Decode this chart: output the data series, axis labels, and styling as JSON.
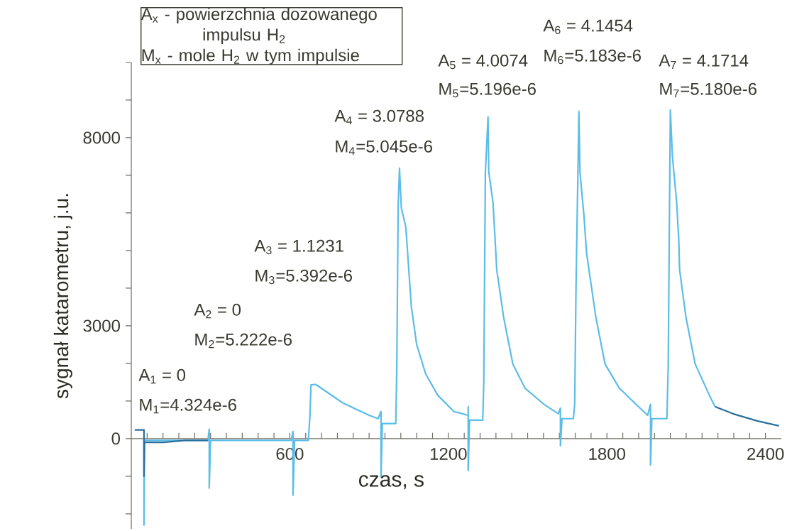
{
  "chart_data": {
    "type": "line",
    "xlabel": "czas, s",
    "ylabel": "sygnał katarometru, j.u.",
    "xlim": [
      0,
      2460
    ],
    "ylim": [
      -2400,
      10000
    ],
    "xticks": [
      {
        "value": 60,
        "label": null
      },
      {
        "value": 120,
        "label": null
      },
      {
        "value": 180,
        "label": null
      },
      {
        "value": 240,
        "label": null
      },
      {
        "value": 300,
        "label": null
      },
      {
        "value": 360,
        "label": null
      },
      {
        "value": 420,
        "label": null
      },
      {
        "value": 480,
        "label": null
      },
      {
        "value": 540,
        "label": null
      },
      600,
      {
        "value": 660,
        "label": null
      },
      {
        "value": 720,
        "label": null
      },
      {
        "value": 780,
        "label": null
      },
      {
        "value": 840,
        "label": null
      },
      {
        "value": 900,
        "label": null
      },
      {
        "value": 960,
        "label": null
      },
      {
        "value": 1020,
        "label": null
      },
      {
        "value": 1080,
        "label": null
      },
      {
        "value": 1140,
        "label": null
      },
      1200,
      {
        "value": 1260,
        "label": null
      },
      {
        "value": 1320,
        "label": null
      },
      {
        "value": 1380,
        "label": null
      },
      {
        "value": 1440,
        "label": null
      },
      {
        "value": 1500,
        "label": null
      },
      {
        "value": 1560,
        "label": null
      },
      {
        "value": 1620,
        "label": null
      },
      {
        "value": 1680,
        "label": null
      },
      {
        "value": 1740,
        "label": null
      },
      1800,
      {
        "value": 1860,
        "label": null
      },
      {
        "value": 1920,
        "label": null
      },
      {
        "value": 1980,
        "label": null
      },
      {
        "value": 2040,
        "label": null
      },
      {
        "value": 2100,
        "label": null
      },
      {
        "value": 2160,
        "label": null
      },
      {
        "value": 2220,
        "label": null
      },
      {
        "value": 2280,
        "label": null
      },
      {
        "value": 2340,
        "label": null
      },
      2400
    ],
    "yticks": [
      {
        "value": -2000,
        "label": null
      },
      {
        "value": -1000,
        "label": null
      },
      0,
      {
        "value": 1000,
        "label": null
      },
      {
        "value": 2000,
        "label": null
      },
      3000,
      {
        "value": 4000,
        "label": null
      },
      {
        "value": 5000,
        "label": null
      },
      {
        "value": 6000,
        "label": null
      },
      {
        "value": 7000,
        "label": null
      },
      8000,
      {
        "value": 9000,
        "label": null
      },
      {
        "value": 10000,
        "label": null
      }
    ],
    "annotations": [
      "A$_{x}$ - powierzchnia dozowanego impulsu H$_{2}$",
      "M$_{x}$ - mole H$_{2}$  w tym impulsie",
      "A$_{1}$ = 0",
      "M$_{1}$=4.324e-6",
      "A$_{2}$ = 0",
      "M$_{2}$=5.222e-6",
      "A$_{3}$ = 1.1231",
      "M$_{3}$=5.392e-6",
      "A$_{4}$ = 3.0788",
      "M$_{4}$=5.045e-6",
      "A$_{5}$ = 4.0074",
      "M$_{5}$=5.196e-6",
      "A$_{6}$ = 4.1454",
      "M$_{6}$=5.183e-6",
      "A$_{7}$ = 4.1714",
      "M$_{7}$=5.180e-6"
    ],
    "series": [
      {
        "color": "#5bbde8",
        "x": [
          48,
          48,
          50,
          290,
          295,
          295,
          300,
          605,
          612,
          612,
          618,
          670,
          676,
          680,
          698,
          800,
          900,
          934,
          945,
          945,
          950,
          1001,
          1005,
          1010,
          1015,
          1022,
          1039,
          1060,
          1080,
          1114,
          1160,
          1221,
          1275,
          1275,
          1275,
          1280,
          1330,
          1334,
          1340,
          1350,
          1353,
          1369,
          1377,
          1383,
          1409,
          1444,
          1490,
          1562,
          1616,
          1624,
          1624,
          1630,
          1673,
          1678,
          1683,
          1694,
          1698,
          1713,
          1723,
          1732,
          1758,
          1793,
          1847,
          1919,
          1954,
          1965,
          1965,
          1970,
          2027,
          2032,
          2040,
          2048,
          2064,
          2072,
          2075,
          2099,
          2134,
          2188,
          2209
        ],
        "values": [
          -50,
          -2300,
          -50,
          -50,
          250,
          -1320,
          -50,
          -50,
          190,
          -1510,
          -50,
          -50,
          590,
          1430,
          1440,
          950,
          620,
          530,
          720,
          -1020,
          400,
          400,
          2000,
          6200,
          7190,
          6130,
          5620,
          3500,
          2500,
          1720,
          1150,
          720,
          620,
          850,
          -850,
          490,
          490,
          1500,
          7080,
          8550,
          7080,
          6270,
          5270,
          4490,
          3230,
          1980,
          1340,
          910,
          660,
          810,
          -190,
          530,
          530,
          910,
          4000,
          8700,
          7080,
          5930,
          4930,
          4490,
          3230,
          1980,
          1340,
          850,
          620,
          910,
          -700,
          530,
          530,
          1980,
          8740,
          7490,
          6270,
          5270,
          4490,
          3230,
          1980,
          1150,
          850
        ]
      },
      {
        "color": "#2a6f9c",
        "x": [
          13,
          48,
          48,
          50,
          120,
          200,
          290,
          1000,
          2209,
          2277,
          2368,
          2451
        ],
        "values": [
          230,
          230,
          -1000,
          -100,
          -100,
          -50,
          -50,
          null,
          850,
          660,
          470,
          340
        ]
      }
    ]
  }
}
